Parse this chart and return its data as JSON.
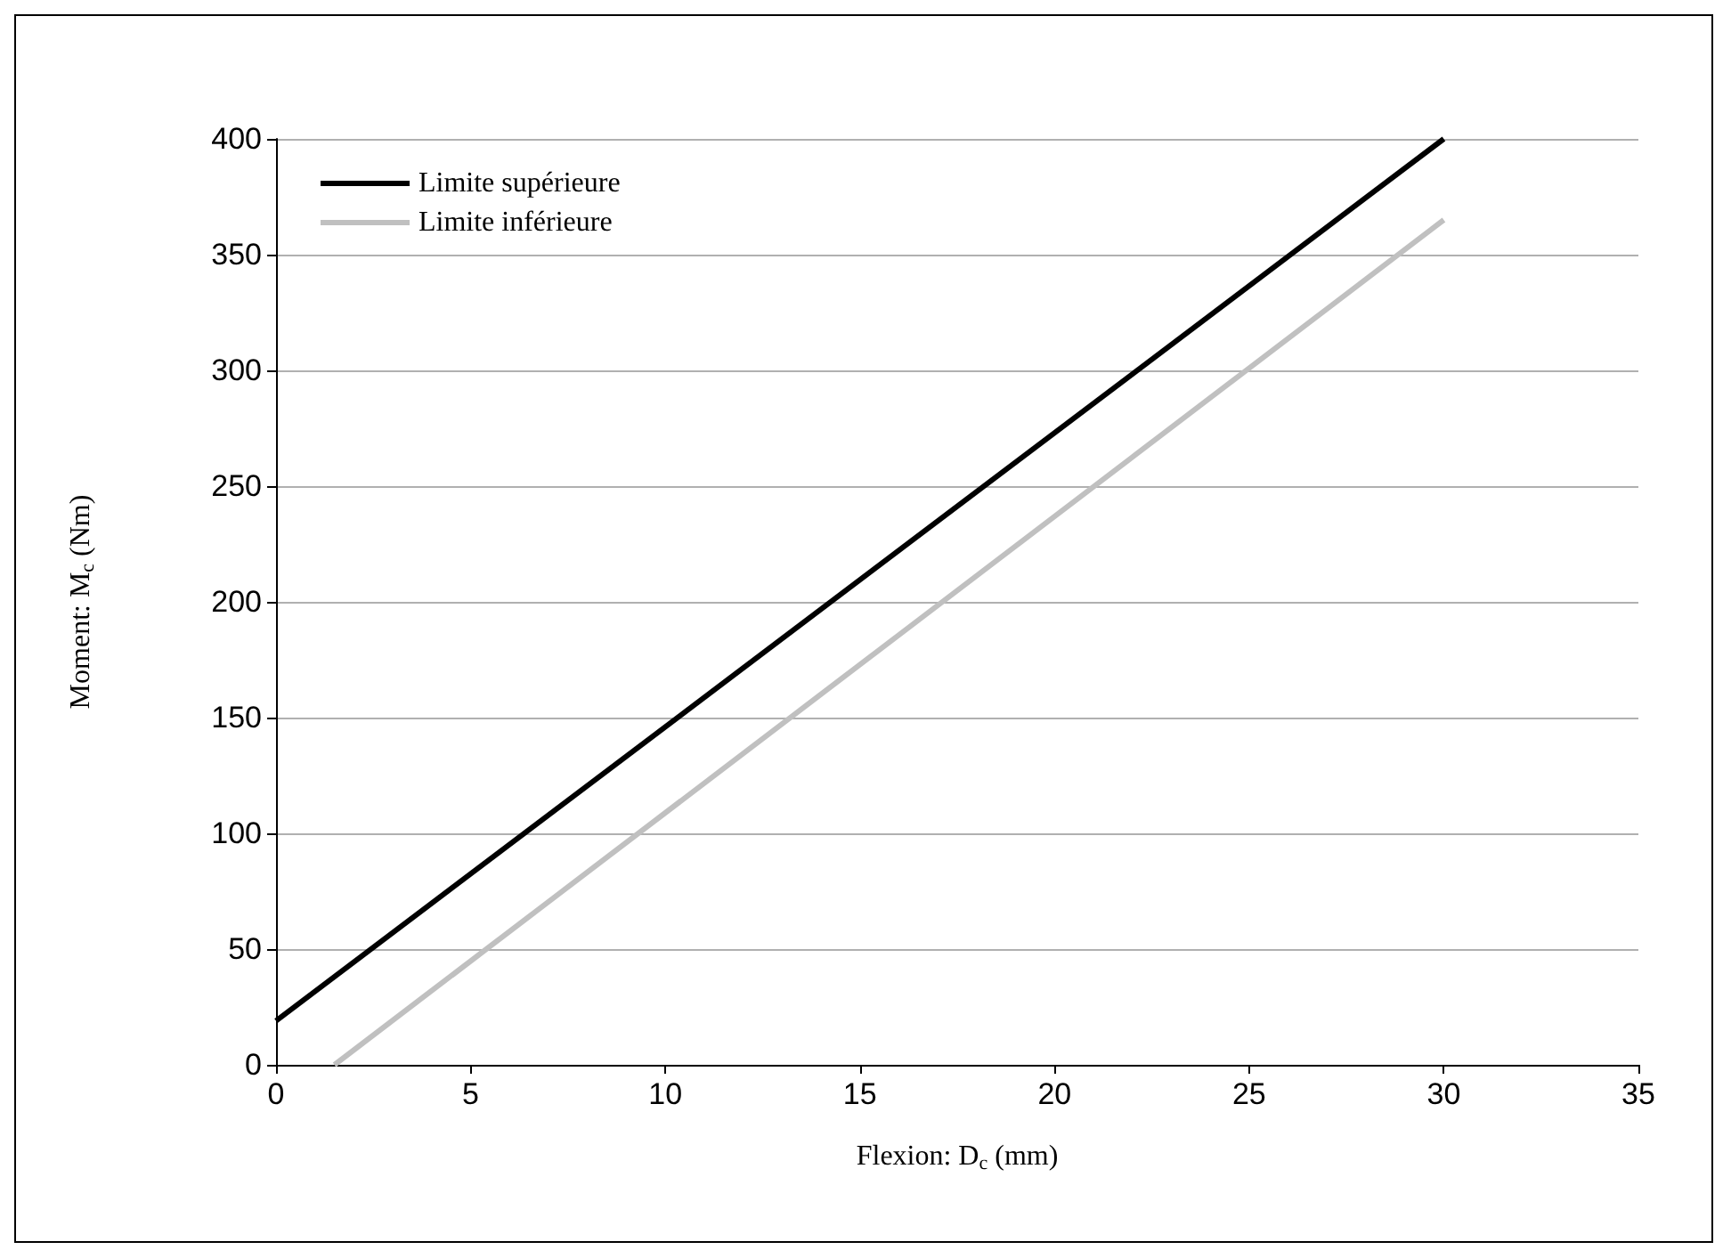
{
  "chart_data": {
    "type": "line",
    "xlabel": "Flexion: D$_{c}$ (mm)",
    "ylabel": "Moment: M$_{c}$ (Nm)",
    "xlim": [
      0,
      35
    ],
    "xticks": [
      0,
      5,
      10,
      15,
      20,
      25,
      30,
      35
    ],
    "ylim": [
      0,
      400
    ],
    "yticks": [
      0,
      50,
      100,
      150,
      200,
      250,
      300,
      350,
      400
    ],
    "grid": "y",
    "legend": "top left",
    "marker": "none",
    "line_style": "solid",
    "series": [
      {
        "name": "Limite supérieure",
        "color": "#000000",
        "x": [
          0,
          30
        ],
        "values": [
          19,
          400
        ]
      },
      {
        "name": "Limite inférieure",
        "color": "#c0c0c0",
        "x": [
          1.5,
          30
        ],
        "values": [
          0,
          365
        ]
      }
    ]
  }
}
